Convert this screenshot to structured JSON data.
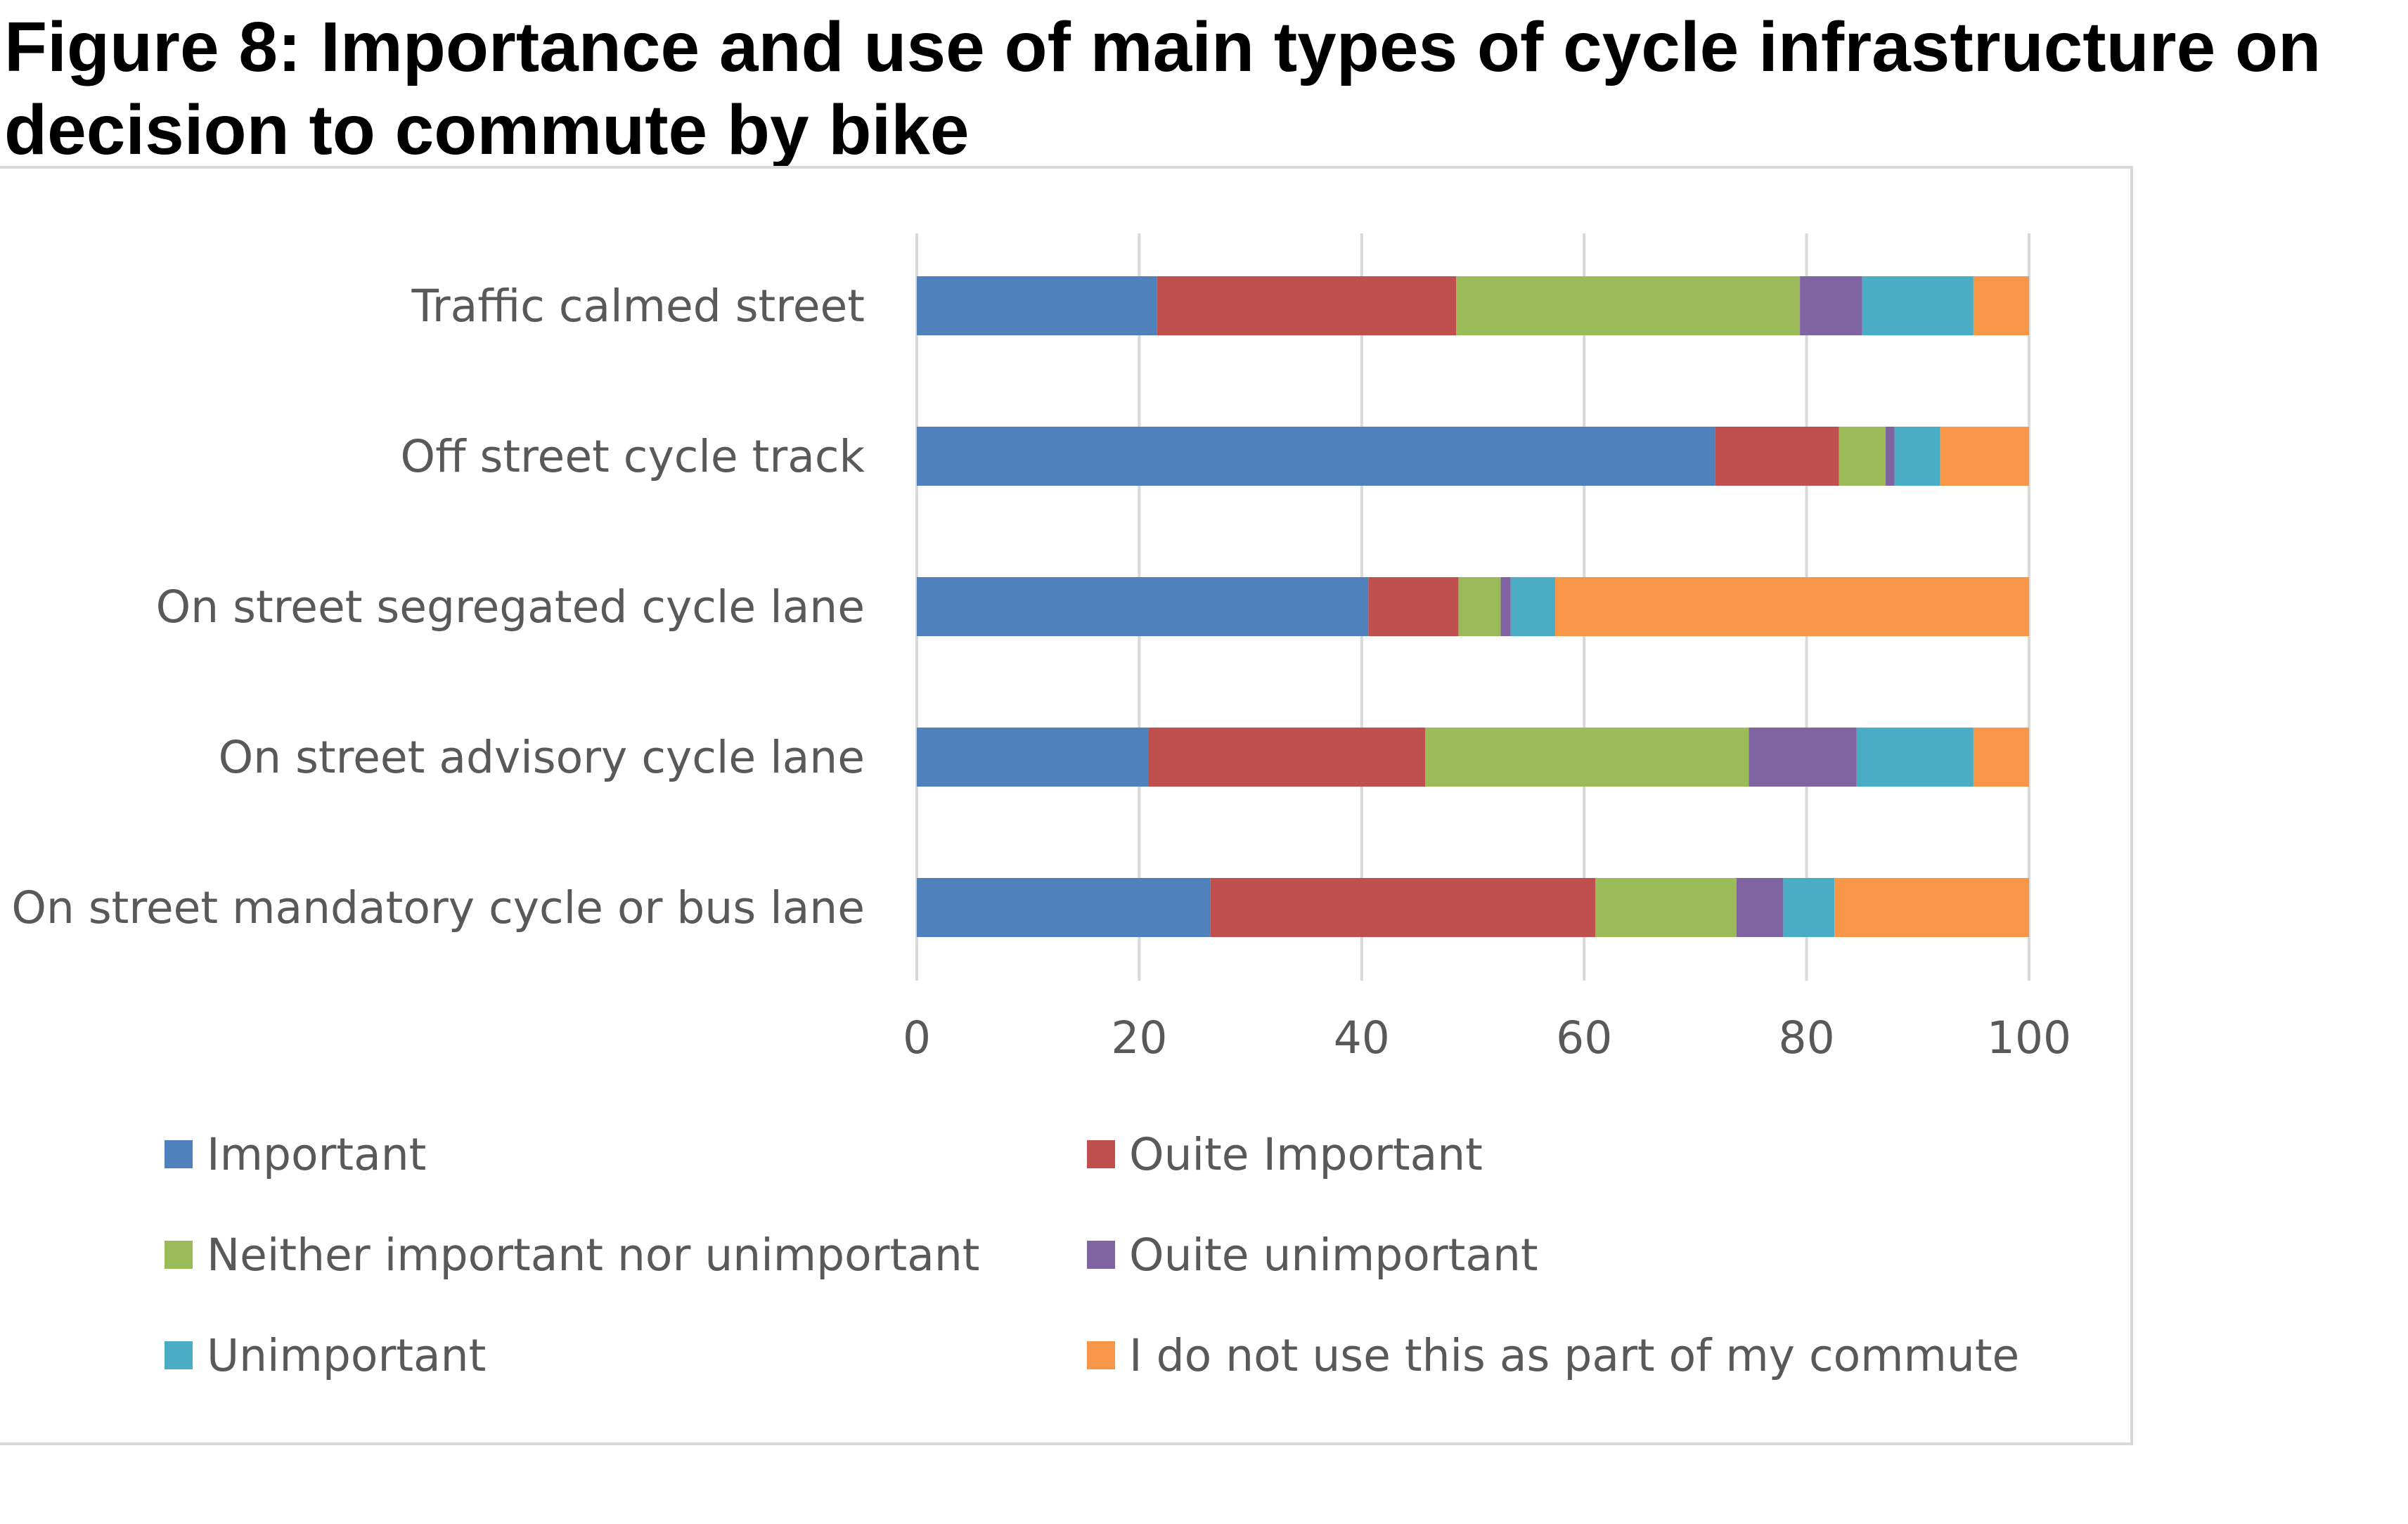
{
  "title": "Figure 8: Importance and use of main types of cycle infrastructure on decision to commute by bike",
  "chart_data": {
    "type": "bar",
    "orientation": "horizontal",
    "stacked": true,
    "title": "Figure 8: Importance and use of main types of cycle infrastructure on decision to commute by bike",
    "xlabel": "",
    "ylabel": "",
    "xlim": [
      0,
      100
    ],
    "xticks": [
      0,
      20,
      40,
      60,
      80,
      100
    ],
    "grid": true,
    "legend_position": "bottom",
    "categories": [
      "Traffic calmed street",
      "Off street cycle track",
      "On street segregated cycle lane",
      "On street advisory cycle lane",
      "On street mandatory cycle or bus lane"
    ],
    "series": [
      {
        "name": "Important",
        "color": "#4f81bd",
        "values": [
          21.6,
          71.8,
          40.6,
          20.8,
          26.4
        ]
      },
      {
        "name": "Ouite Important",
        "color": "#c0504d",
        "values": [
          26.9,
          11.1,
          8.1,
          24.9,
          34.6
        ]
      },
      {
        "name": "Neither important nor unimportant",
        "color": "#9bbb59",
        "values": [
          30.9,
          4.2,
          3.8,
          29.1,
          12.7
        ]
      },
      {
        "name": "Ouite unimportant",
        "color": "#8064a2",
        "values": [
          5.6,
          0.8,
          0.9,
          9.7,
          4.2
        ]
      },
      {
        "name": "Unimportant",
        "color": "#4bacc6",
        "values": [
          10.0,
          4.1,
          4.0,
          10.5,
          4.6
        ]
      },
      {
        "name": "I do not use this as part of my commute",
        "color": "#f79646",
        "values": [
          5.0,
          8.0,
          42.6,
          5.0,
          17.5
        ]
      }
    ]
  }
}
